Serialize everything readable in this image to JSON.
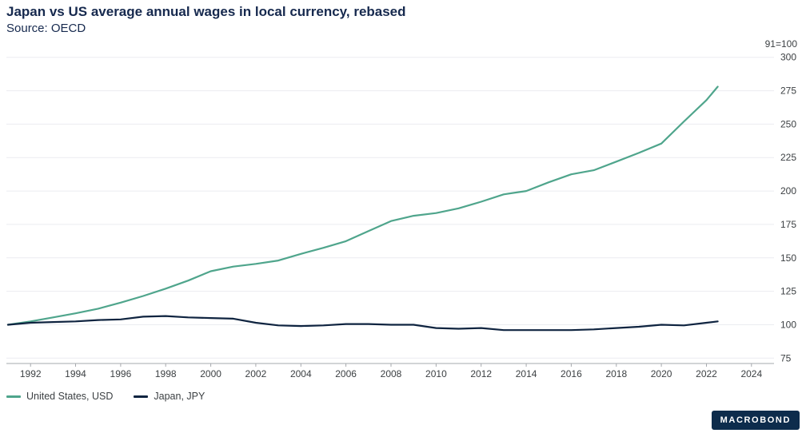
{
  "header": {
    "title": "Japan vs US average annual wages in local currency, rebased",
    "source": "Source: OECD"
  },
  "chart_data": {
    "type": "line",
    "title": "Japan vs US average annual wages in local currency, rebased",
    "subtitle": "Source: OECD",
    "y_axis_note": "91=100",
    "grid": true,
    "legend_position": "bottom-left",
    "xlim": [
      1991,
      2025
    ],
    "ylim": [
      71,
      307
    ],
    "x_ticks": [
      1992,
      1994,
      1996,
      1998,
      2000,
      2002,
      2004,
      2006,
      2008,
      2010,
      2012,
      2014,
      2016,
      2018,
      2020,
      2022,
      2024
    ],
    "y_ticks": [
      75,
      100,
      125,
      150,
      175,
      200,
      225,
      250,
      275,
      300
    ],
    "x": [
      1991,
      1992,
      1993,
      1994,
      1995,
      1996,
      1997,
      1998,
      1999,
      2000,
      2001,
      2002,
      2003,
      2004,
      2005,
      2006,
      2007,
      2008,
      2009,
      2010,
      2011,
      2012,
      2013,
      2014,
      2015,
      2016,
      2017,
      2018,
      2019,
      2020,
      2021,
      2022,
      2022.5
    ],
    "series": [
      {
        "name": "United States, USD",
        "color": "#4fa58c",
        "values": [
          100,
          102.5,
          105.5,
          108.5,
          112,
          116.5,
          121.5,
          127,
          133,
          140,
          143.5,
          145.5,
          148,
          153,
          157.5,
          162.5,
          170,
          177.5,
          181.5,
          183.5,
          187,
          192,
          197.5,
          200,
          206.5,
          212.5,
          215.5,
          222,
          228.5,
          235.5,
          252,
          268,
          278
        ]
      },
      {
        "name": "Japan, JPY",
        "color": "#0f2440",
        "values": [
          100,
          101.5,
          102,
          102.5,
          103.5,
          104,
          106,
          106.5,
          105.5,
          105,
          104.5,
          101.5,
          99.5,
          99,
          99.5,
          100.5,
          100.5,
          100,
          100,
          97.5,
          97,
          97.5,
          96,
          96,
          96,
          96,
          96.5,
          97.5,
          98.5,
          100,
          99.5,
          101.5,
          102.5
        ]
      }
    ]
  },
  "logo": {
    "text": "MACROBOND"
  }
}
